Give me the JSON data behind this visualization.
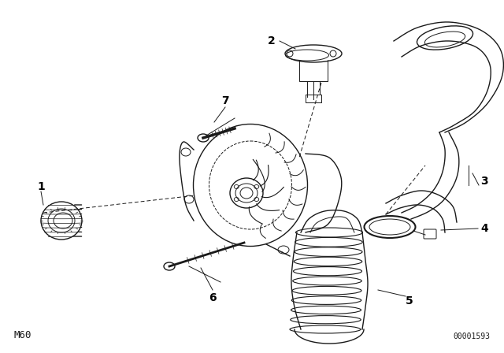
{
  "bg_color": "#ffffff",
  "line_color": "#1a1a1a",
  "label_color": "#000000",
  "bottom_left_text": "M60",
  "bottom_right_text": "00001593",
  "figsize": [
    6.4,
    4.48
  ],
  "dpi": 100
}
